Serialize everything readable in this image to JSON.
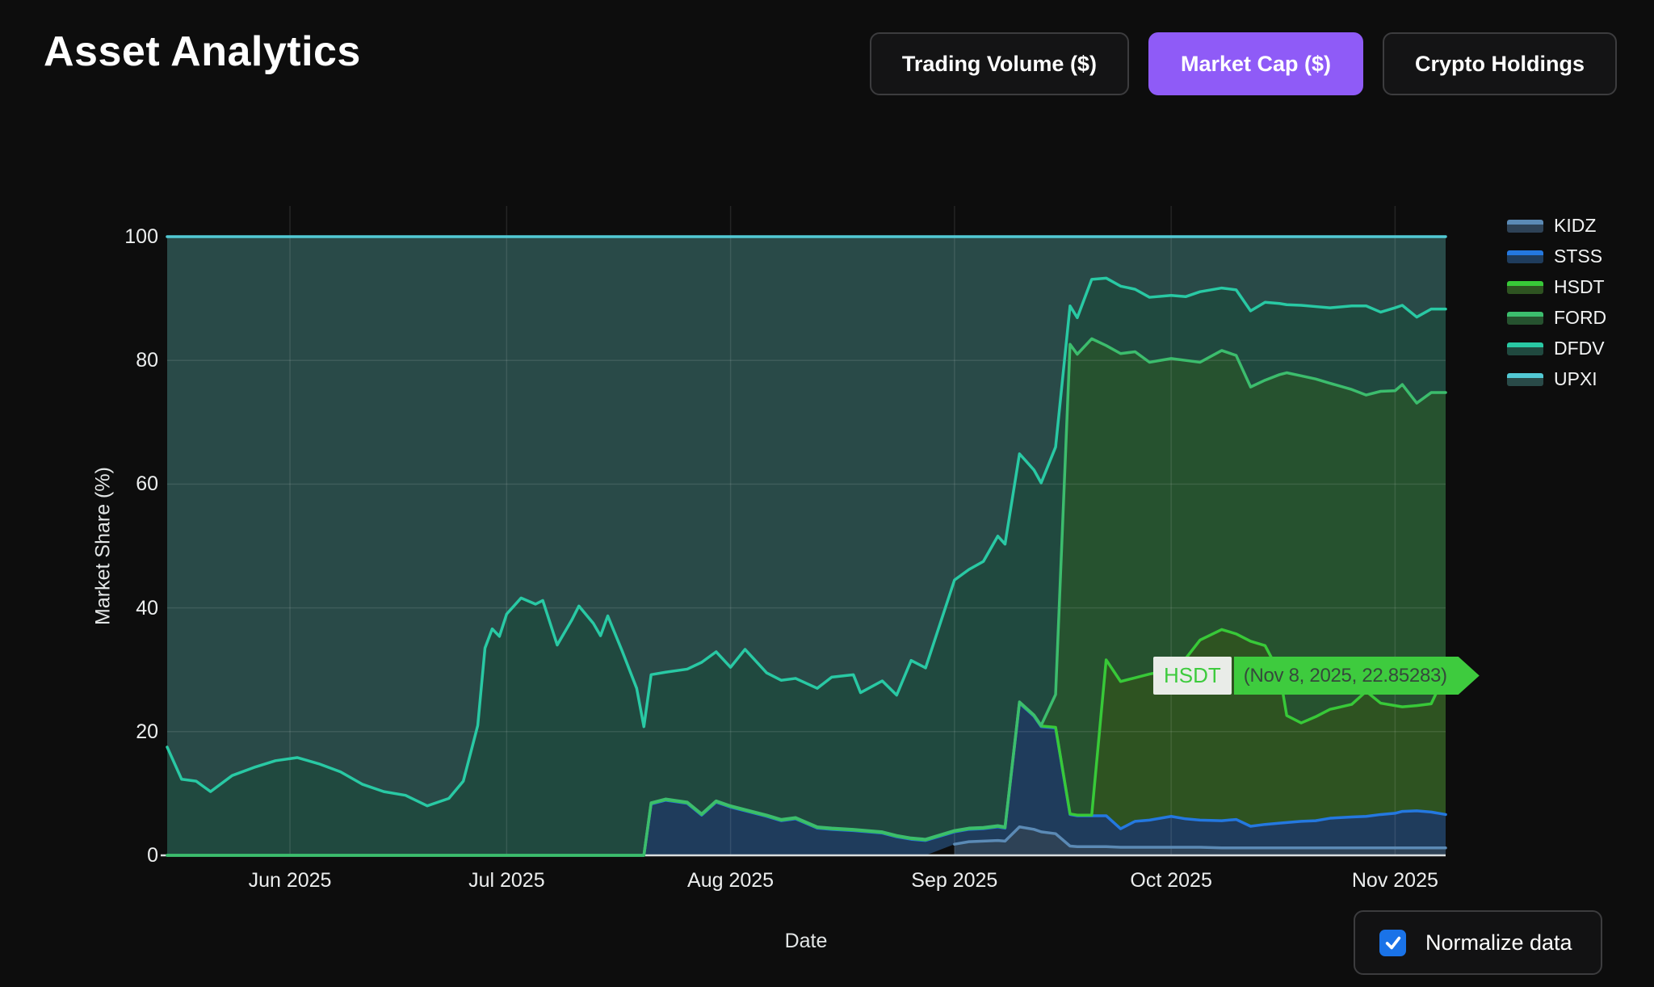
{
  "header": {
    "title": "Asset Analytics",
    "tabs": [
      {
        "label": "Trading Volume ($)",
        "active": false
      },
      {
        "label": "Market Cap ($)",
        "active": true
      },
      {
        "label": "Crypto Holdings",
        "active": false
      }
    ],
    "active_tab_color": "#8f5bf7"
  },
  "tooltip": {
    "series": "HSDT",
    "text": "(Nov 8, 2025, 22.85283)",
    "box_color": "#3ecb3e",
    "chip_bg": "#e9ece8"
  },
  "controls": {
    "normalize_label": "Normalize data",
    "normalize_checked": true,
    "checkbox_color": "#1a73e8"
  },
  "chart_data": {
    "type": "area",
    "stacked": true,
    "normalized": true,
    "xlabel": "Date",
    "ylabel": "Market Share (%)",
    "ylim": [
      0,
      100
    ],
    "yticks": [
      0,
      20,
      40,
      60,
      80,
      100
    ],
    "grid": true,
    "legend_position": "right",
    "xticks": [
      {
        "date": "2025-06-01",
        "label": "Jun 2025"
      },
      {
        "date": "2025-07-01",
        "label": "Jul 2025"
      },
      {
        "date": "2025-08-01",
        "label": "Aug 2025"
      },
      {
        "date": "2025-09-01",
        "label": "Sep 2025"
      },
      {
        "date": "2025-10-01",
        "label": "Oct 2025"
      },
      {
        "date": "2025-11-01",
        "label": "Nov 2025"
      }
    ],
    "x": [
      "2025-05-15",
      "2025-05-17",
      "2025-05-19",
      "2025-05-21",
      "2025-05-24",
      "2025-05-27",
      "2025-05-30",
      "2025-06-02",
      "2025-06-05",
      "2025-06-08",
      "2025-06-11",
      "2025-06-14",
      "2025-06-17",
      "2025-06-20",
      "2025-06-23",
      "2025-06-25",
      "2025-06-27",
      "2025-06-28",
      "2025-06-29",
      "2025-06-30",
      "2025-07-01",
      "2025-07-03",
      "2025-07-05",
      "2025-07-06",
      "2025-07-08",
      "2025-07-10",
      "2025-07-11",
      "2025-07-13",
      "2025-07-14",
      "2025-07-15",
      "2025-07-17",
      "2025-07-19",
      "2025-07-20",
      "2025-07-21",
      "2025-07-23",
      "2025-07-26",
      "2025-07-28",
      "2025-07-30",
      "2025-08-01",
      "2025-08-03",
      "2025-08-06",
      "2025-08-08",
      "2025-08-10",
      "2025-08-13",
      "2025-08-15",
      "2025-08-18",
      "2025-08-19",
      "2025-08-22",
      "2025-08-24",
      "2025-08-26",
      "2025-08-28",
      "2025-09-01",
      "2025-09-03",
      "2025-09-05",
      "2025-09-07",
      "2025-09-08",
      "2025-09-10",
      "2025-09-12",
      "2025-09-13",
      "2025-09-15",
      "2025-09-17",
      "2025-09-18",
      "2025-09-20",
      "2025-09-22",
      "2025-09-24",
      "2025-09-26",
      "2025-09-28",
      "2025-10-01",
      "2025-10-03",
      "2025-10-05",
      "2025-10-08",
      "2025-10-10",
      "2025-10-12",
      "2025-10-14",
      "2025-10-16",
      "2025-10-17",
      "2025-10-19",
      "2025-10-21",
      "2025-10-23",
      "2025-10-26",
      "2025-10-28",
      "2025-10-30",
      "2025-11-01",
      "2025-11-02",
      "2025-11-04",
      "2025-11-06",
      "2025-11-08"
    ],
    "series": [
      {
        "name": "KIDZ",
        "color": "#5b8ab5",
        "fill": "#2e4256",
        "values": [
          null,
          null,
          null,
          null,
          null,
          null,
          null,
          null,
          null,
          null,
          null,
          null,
          null,
          null,
          null,
          null,
          null,
          null,
          null,
          null,
          null,
          null,
          null,
          null,
          null,
          null,
          null,
          null,
          null,
          null,
          null,
          null,
          null,
          null,
          null,
          null,
          null,
          null,
          null,
          null,
          null,
          null,
          null,
          null,
          null,
          null,
          null,
          null,
          null,
          null,
          null,
          1.8,
          2.2,
          2.3,
          2.4,
          2.3,
          4.6,
          4.2,
          3.8,
          3.5,
          1.5,
          1.4,
          1.4,
          1.4,
          1.3,
          1.3,
          1.3,
          1.3,
          1.3,
          1.3,
          1.2,
          1.2,
          1.2,
          1.2,
          1.2,
          1.2,
          1.2,
          1.2,
          1.2,
          1.2,
          1.2,
          1.2,
          1.2,
          1.2,
          1.2,
          1.2,
          1.2
        ]
      },
      {
        "name": "STSS",
        "color": "#2478e0",
        "fill": "#1f3c5c",
        "values": [
          0,
          0,
          0,
          0,
          0,
          0,
          0,
          0,
          0,
          0,
          0,
          0,
          0,
          0,
          0,
          0,
          0,
          0,
          0,
          0,
          0,
          0,
          0,
          0,
          0,
          0,
          0,
          0,
          0,
          0,
          0,
          0,
          0,
          8.3,
          8.9,
          8.4,
          6.5,
          8.6,
          7.8,
          7.2,
          6.3,
          5.6,
          5.9,
          4.4,
          4.2,
          4.0,
          3.9,
          3.6,
          3.0,
          2.6,
          2.4,
          2.0,
          2.0,
          2.0,
          2.2,
          2.1,
          20.0,
          18.3,
          17.0,
          17.1,
          5.1,
          5.0,
          5.0,
          5.0,
          3.0,
          4.2,
          4.4,
          5.0,
          4.6,
          4.4,
          4.4,
          4.6,
          3.5,
          3.8,
          4.0,
          4.1,
          4.3,
          4.4,
          4.8,
          5.0,
          5.1,
          5.4,
          5.6,
          5.9,
          6.0,
          5.8,
          5.4
        ]
      },
      {
        "name": "HSDT",
        "color": "#38c938",
        "fill": "#2e5321",
        "values": [
          0,
          0,
          0,
          0,
          0,
          0,
          0,
          0,
          0,
          0,
          0,
          0,
          0,
          0,
          0,
          0,
          0,
          0,
          0,
          0,
          0,
          0,
          0,
          0,
          0,
          0,
          0,
          0,
          0,
          0,
          0,
          0,
          0,
          0.1,
          0.1,
          0.1,
          0.1,
          0.1,
          0.1,
          0.1,
          0.1,
          0.1,
          0.1,
          0.1,
          0.1,
          0.1,
          0.1,
          0.1,
          0.1,
          0.1,
          0.1,
          0.1,
          0.1,
          0.1,
          0.1,
          0.1,
          0.1,
          0.1,
          0.1,
          0.1,
          0.1,
          0.1,
          0.1,
          25.2,
          23.8,
          23.2,
          23.6,
          23.7,
          25.9,
          29.1,
          30.9,
          30.0,
          29.9,
          28.9,
          24.3,
          17.3,
          15.9,
          16.8,
          17.6,
          18.2,
          20.2,
          18.0,
          17.4,
          16.9,
          17.0,
          17.5,
          22.85283
        ]
      },
      {
        "name": "FORD",
        "color": "#3cbd6d",
        "fill": "#26522f",
        "values": [
          0,
          0,
          0,
          0,
          0,
          0,
          0,
          0,
          0,
          0,
          0,
          0,
          0,
          0,
          0,
          0,
          0,
          0,
          0,
          0,
          0,
          0,
          0,
          0,
          0,
          0,
          0,
          0,
          0,
          0,
          0,
          0,
          0,
          0.1,
          0.1,
          0.1,
          0.1,
          0.1,
          0.1,
          0.1,
          0.1,
          0.1,
          0.1,
          0.1,
          0.1,
          0.1,
          0.1,
          0.1,
          0.1,
          0.1,
          0.1,
          0.1,
          0.1,
          0.1,
          0.1,
          0.1,
          0.1,
          0.1,
          0.1,
          5.3,
          75.9,
          74.5,
          77.0,
          50.8,
          53.0,
          52.7,
          50.4,
          50.3,
          48.2,
          44.9,
          45.1,
          45.0,
          41.1,
          42.9,
          48.2,
          55.4,
          56.1,
          54.6,
          52.7,
          50.9,
          47.9,
          50.4,
          50.9,
          52.1,
          48.9,
          50.3,
          45.35
        ]
      },
      {
        "name": "DFDV",
        "color": "#29c9a4",
        "fill": "#20493f",
        "values": [
          17.5,
          12.3,
          12.0,
          10.3,
          12.9,
          14.2,
          15.3,
          15.8,
          14.8,
          13.5,
          11.5,
          10.3,
          9.7,
          8.0,
          9.2,
          12.0,
          21.0,
          33.5,
          36.6,
          35.4,
          39.0,
          41.6,
          40.6,
          41.2,
          34.0,
          38.0,
          40.3,
          37.5,
          35.5,
          38.7,
          33.0,
          27.0,
          20.8,
          20.7,
          20.5,
          21.5,
          24.5,
          24.1,
          22.4,
          25.9,
          23.0,
          22.5,
          22.5,
          22.4,
          24.4,
          25.0,
          22.2,
          24.4,
          22.7,
          28.7,
          27.7,
          40.5,
          41.8,
          43.0,
          46.8,
          45.7,
          40.1,
          39.6,
          39.2,
          40.0,
          6.2,
          5.9,
          9.6,
          10.9,
          10.9,
          10.1,
          10.5,
          10.2,
          10.3,
          11.4,
          10.1,
          10.6,
          12.3,
          12.6,
          11.5,
          11.0,
          11.4,
          11.7,
          12.2,
          13.5,
          14.4,
          12.8,
          13.4,
          12.8,
          13.9,
          13.5,
          13.5
        ]
      },
      {
        "name": "UPXI",
        "color": "#52c9d4",
        "fill": "#294a48",
        "values": [
          82.5,
          87.7,
          88.0,
          89.7,
          87.1,
          85.8,
          84.7,
          84.2,
          85.2,
          86.5,
          88.5,
          89.7,
          90.3,
          92.0,
          90.8,
          88.0,
          79.0,
          66.5,
          63.4,
          64.6,
          61.0,
          58.4,
          59.4,
          58.8,
          66.0,
          62.0,
          59.7,
          62.5,
          64.5,
          61.3,
          67.0,
          73.0,
          79.2,
          70.8,
          70.4,
          69.9,
          68.8,
          67.1,
          69.6,
          66.7,
          70.5,
          71.7,
          71.4,
          73.0,
          71.2,
          70.8,
          73.7,
          71.8,
          74.1,
          68.5,
          69.7,
          55.5,
          53.8,
          52.5,
          48.4,
          49.7,
          35.1,
          37.7,
          39.8,
          34.0,
          11.2,
          13.1,
          6.9,
          6.7,
          8.0,
          8.5,
          9.8,
          9.5,
          9.7,
          8.9,
          8.3,
          8.6,
          12.0,
          10.6,
          10.8,
          11.0,
          11.1,
          11.3,
          11.5,
          11.2,
          11.2,
          12.2,
          11.5,
          11.1,
          13.0,
          11.7,
          11.7
        ]
      }
    ]
  }
}
